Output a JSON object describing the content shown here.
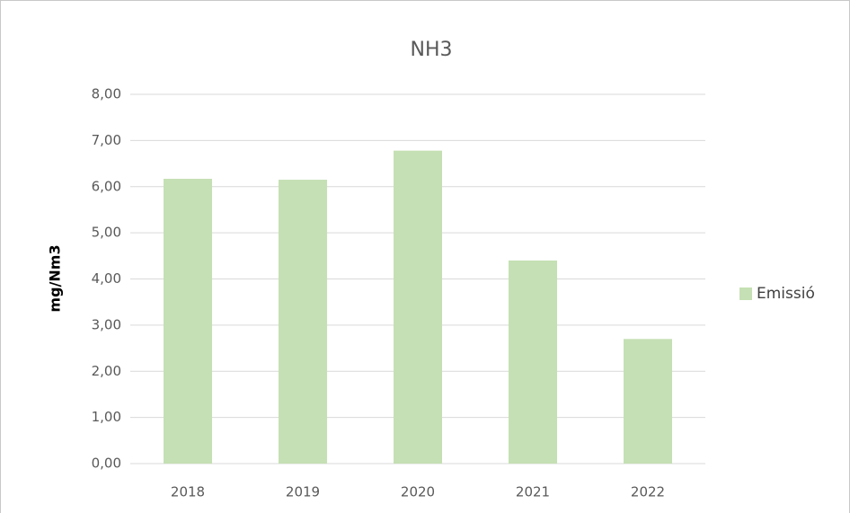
{
  "chart_data": {
    "type": "bar",
    "title": "NH3",
    "y_label": "mg/Nm3",
    "categories": [
      "2018",
      "2019",
      "2020",
      "2021",
      "2022"
    ],
    "series": [
      {
        "name": "Emissió",
        "color": "#c5e0b4",
        "values": [
          6.17,
          6.15,
          6.78,
          4.4,
          2.7
        ]
      }
    ],
    "ylim": [
      0,
      8
    ],
    "yticks": [
      {
        "value": 0,
        "label": "0,00"
      },
      {
        "value": 1,
        "label": "1,00"
      },
      {
        "value": 2,
        "label": "2,00"
      },
      {
        "value": 3,
        "label": "3,00"
      },
      {
        "value": 4,
        "label": "4,00"
      },
      {
        "value": 5,
        "label": "5,00"
      },
      {
        "value": 6,
        "label": "6,00"
      },
      {
        "value": 7,
        "label": "7,00"
      },
      {
        "value": 8,
        "label": "8,00"
      }
    ],
    "grid": true,
    "legend": "right"
  }
}
